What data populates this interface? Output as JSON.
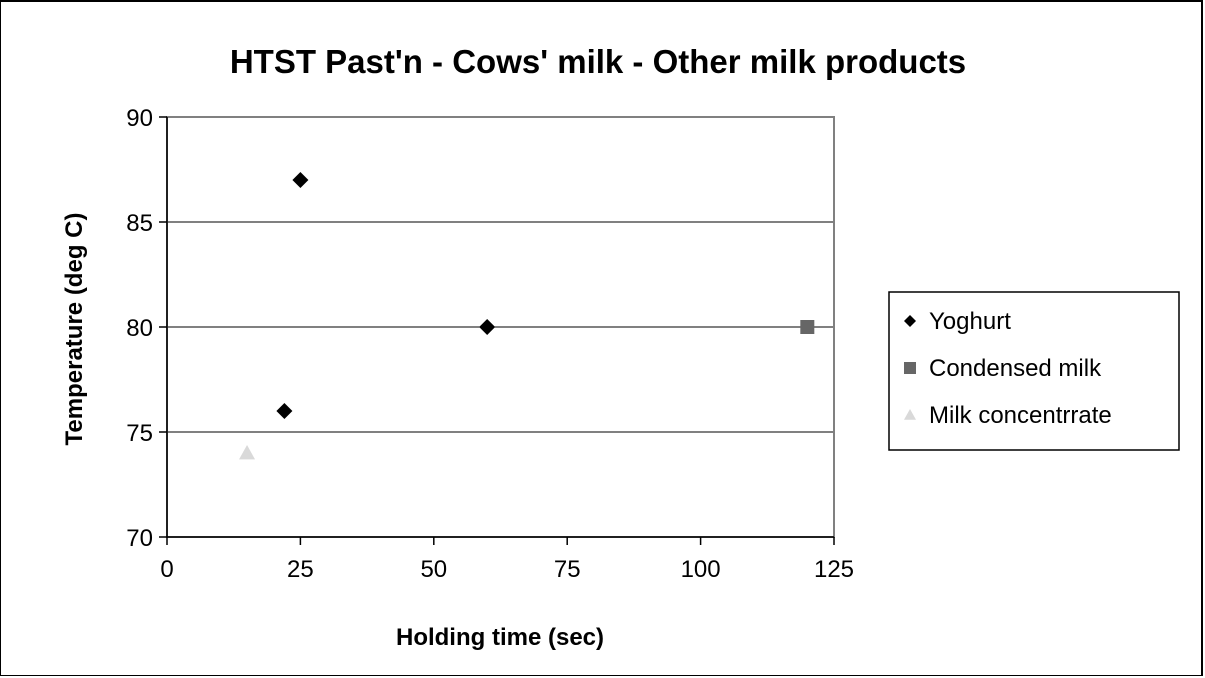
{
  "chart_data": {
    "type": "scatter",
    "title": "HTST Past'n - Cows' milk - Other milk products",
    "xlabel": "Holding time (sec)",
    "ylabel": "Temperature (deg C)",
    "xlim": [
      0,
      125
    ],
    "ylim": [
      70,
      90
    ],
    "x_ticks": [
      "0",
      "25",
      "50",
      "75",
      "100",
      "125"
    ],
    "y_ticks": [
      "70",
      "75",
      "80",
      "85",
      "90"
    ],
    "grid": "horizontal major",
    "legend_position": "right",
    "series": [
      {
        "name": "Yoghurt",
        "marker": "diamond",
        "color": "#000000",
        "points": [
          {
            "x": 25,
            "y": 87
          },
          {
            "x": 60,
            "y": 80
          },
          {
            "x": 22,
            "y": 76
          }
        ]
      },
      {
        "name": "Condensed milk",
        "marker": "square",
        "color": "#666666",
        "points": [
          {
            "x": 120,
            "y": 80
          }
        ]
      },
      {
        "name": "Milk concentrrate",
        "marker": "triangle",
        "color": "#d9d9d9",
        "points": [
          {
            "x": 15,
            "y": 74
          }
        ]
      }
    ]
  }
}
